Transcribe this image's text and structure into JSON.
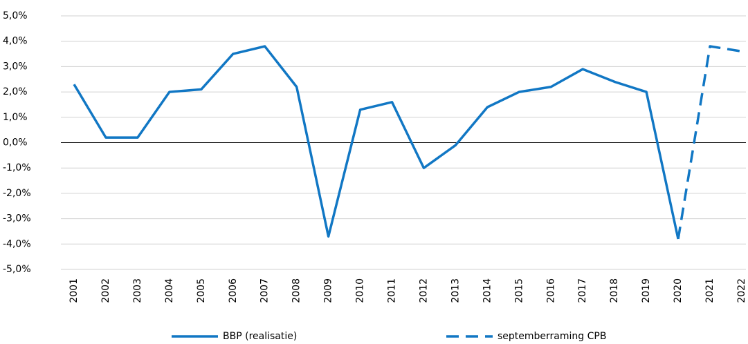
{
  "chart_data": {
    "type": "line",
    "categories": [
      "2001",
      "2002",
      "2003",
      "2004",
      "2005",
      "2006",
      "2007",
      "2008",
      "2009",
      "2010",
      "2011",
      "2012",
      "2013",
      "2014",
      "2015",
      "2016",
      "2017",
      "2018",
      "2019",
      "2020",
      "2021",
      "2022"
    ],
    "series": [
      {
        "name": "BBP (realisatie)",
        "color": "#1177c4",
        "dash": false,
        "values": [
          2.3,
          0.2,
          0.2,
          2.0,
          2.1,
          3.5,
          3.8,
          2.2,
          -3.7,
          1.3,
          1.6,
          -1.0,
          -0.1,
          1.4,
          2.0,
          2.2,
          2.9,
          2.4,
          2.0,
          -3.8,
          null,
          null
        ]
      },
      {
        "name": "septemberraming CPB",
        "color": "#1177c4",
        "dash": true,
        "values": [
          null,
          null,
          null,
          null,
          null,
          null,
          null,
          null,
          null,
          null,
          null,
          null,
          null,
          null,
          null,
          null,
          null,
          null,
          null,
          -3.8,
          3.8,
          3.6
        ]
      }
    ],
    "ylim": [
      -5,
      5
    ],
    "yticks": [
      {
        "value": -5,
        "label": "-5,0%"
      },
      {
        "value": -4,
        "label": "-4,0%"
      },
      {
        "value": -3,
        "label": "-3,0%"
      },
      {
        "value": -2,
        "label": "-2,0%"
      },
      {
        "value": -1,
        "label": "-1,0%"
      },
      {
        "value": 0,
        "label": "0,0%"
      },
      {
        "value": 1,
        "label": "1,0%"
      },
      {
        "value": 2,
        "label": "2,0%"
      },
      {
        "value": 3,
        "label": "3,0%"
      },
      {
        "value": 4,
        "label": "4,0%"
      },
      {
        "value": 5,
        "label": "5,0%"
      }
    ],
    "grid": true,
    "legend": "bottom"
  }
}
